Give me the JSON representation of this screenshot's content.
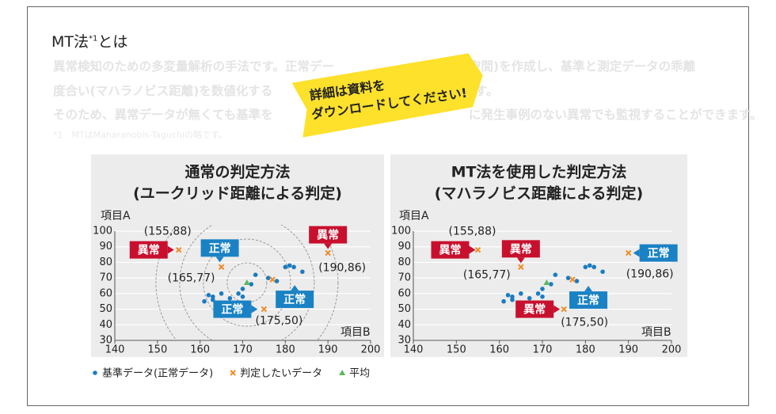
{
  "header": {
    "title": "MT法",
    "title_note": "*1",
    "title_suffix": "とは",
    "paragraph": [
      "異常検知のための多変量解析の手法です。正常デー",
      "空間)を作成し、基準と測定データの乖離",
      "度合い(マハラノビス距離)を数値化する",
      "す。",
      "そのため、異常データが無くても基準を",
      "に発生事例のない異常でも監視することができます。"
    ],
    "footnote": "*1　MTはMaharanobis-Taguchiの略です。",
    "banner": [
      "詳細は資料を",
      "ダウンロードしてください!"
    ]
  },
  "chart_data": [
    {
      "type": "scatter",
      "title": [
        "通常の判定方法",
        "(ユークリッド距離による判定)"
      ],
      "xlabel": "項目B",
      "ylabel": "項目A",
      "xlim": [
        140,
        200
      ],
      "xticks": [
        140,
        150,
        160,
        170,
        180,
        190,
        200
      ],
      "ylim": [
        30,
        100
      ],
      "yticks": [
        30,
        40,
        50,
        60,
        70,
        80,
        90,
        100
      ],
      "distance_rings": true,
      "series": [
        {
          "name": "基準データ(正常データ)",
          "color": "#1a7cc1",
          "marker": "circle",
          "x": [
            161,
            162,
            163,
            163,
            165,
            167,
            169,
            170,
            170,
            172,
            173,
            176,
            178,
            180,
            181,
            182,
            184
          ],
          "values": [
            55,
            59,
            58,
            56,
            60,
            57,
            60,
            58,
            63,
            66,
            72,
            70,
            68,
            77,
            78,
            77,
            74
          ]
        },
        {
          "name": "判定したいデータ",
          "color": "#f08a24",
          "marker": "cross",
          "x": [
            155,
            165,
            175,
            190,
            177
          ],
          "values": [
            88,
            77,
            50,
            86,
            69
          ],
          "value_labels": [
            "(155,88)",
            "(165,77)",
            "(175,50)",
            "(190,86)",
            null
          ],
          "judgements": [
            "異常",
            "正常",
            "正常",
            "異常",
            "正常"
          ]
        },
        {
          "name": "平均",
          "color": "#5cb85c",
          "marker": "triangle",
          "x": [
            171
          ],
          "values": [
            67
          ]
        }
      ]
    },
    {
      "type": "scatter",
      "title": [
        "MT法を使用した判定方法",
        "(マハラノビス距離による判定)"
      ],
      "xlabel": "項目B",
      "ylabel": "項目A",
      "xlim": [
        140,
        200
      ],
      "xticks": [
        140,
        150,
        160,
        170,
        180,
        190,
        200
      ],
      "ylim": [
        30,
        100
      ],
      "yticks": [
        30,
        40,
        50,
        60,
        70,
        80,
        90,
        100
      ],
      "distance_rings": false,
      "series": [
        {
          "color": "#1a7cc1",
          "marker": "circle",
          "x": [
            161,
            162,
            163,
            163,
            165,
            167,
            169,
            170,
            170,
            172,
            173,
            176,
            178,
            180,
            181,
            182,
            184
          ],
          "values": [
            55,
            59,
            58,
            56,
            60,
            57,
            60,
            58,
            63,
            66,
            72,
            70,
            68,
            77,
            78,
            77,
            74
          ]
        },
        {
          "color": "#f08a24",
          "marker": "cross",
          "x": [
            155,
            165,
            175,
            190,
            177
          ],
          "values": [
            88,
            77,
            50,
            86,
            69
          ],
          "value_labels": [
            "(155,88)",
            "(165,77)",
            "(175,50)",
            "(190,86)",
            null
          ],
          "judgements": [
            "異常",
            "異常",
            "異常",
            "正常",
            "正常"
          ]
        },
        {
          "color": "#5cb85c",
          "marker": "triangle",
          "x": [
            171
          ],
          "values": [
            67
          ]
        }
      ]
    }
  ]
}
